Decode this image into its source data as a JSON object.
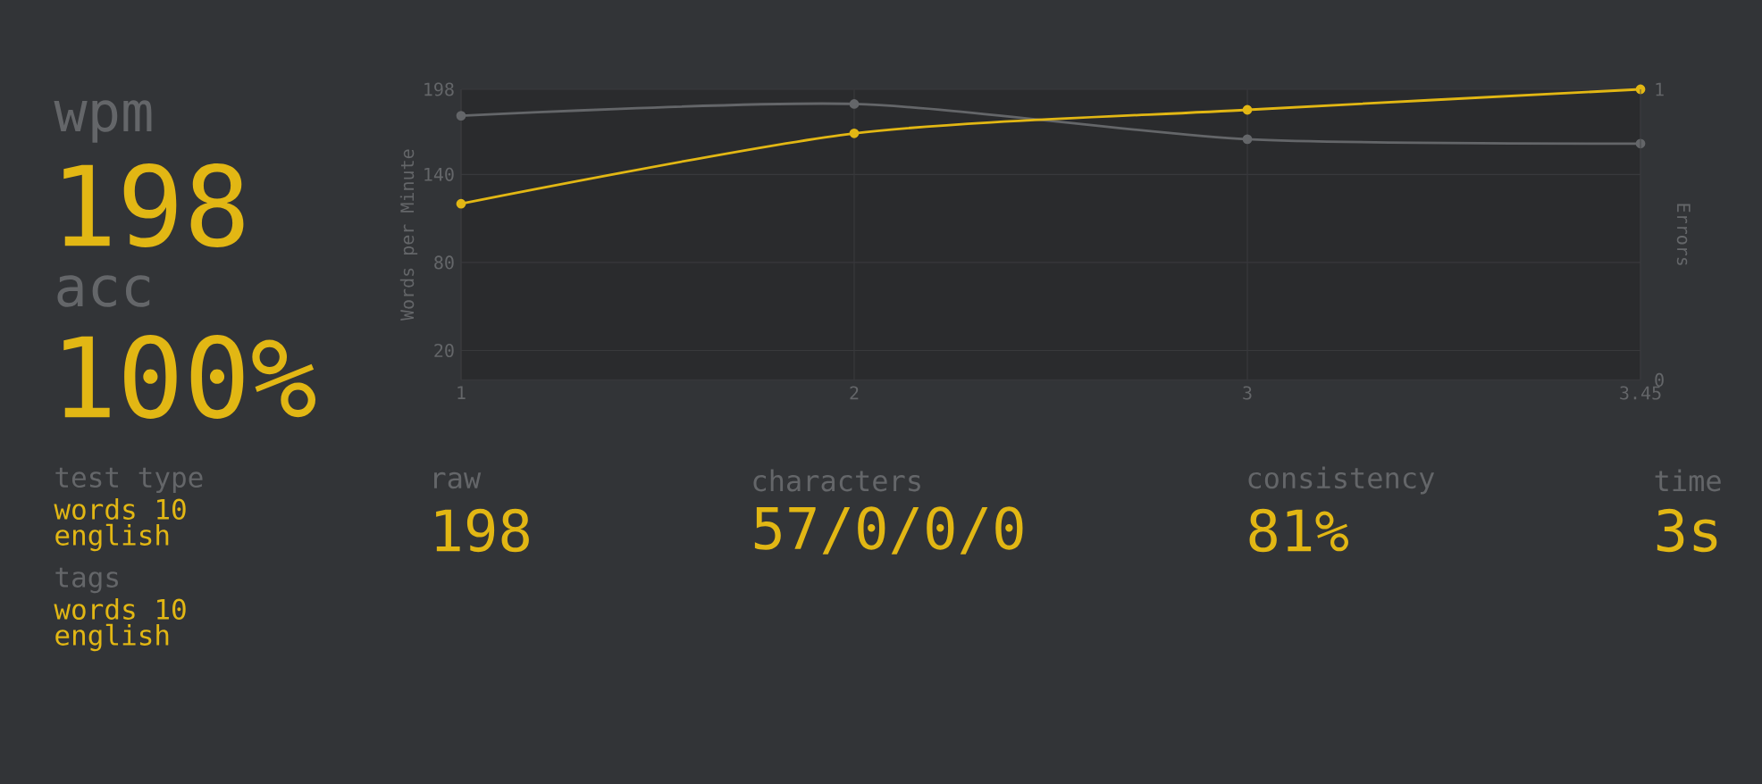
{
  "chart_data": [
    {
      "type": "line",
      "ylabel": "Words per Minute",
      "y2label": "Errors",
      "categories": [
        "1",
        "2",
        "3",
        "3.45"
      ],
      "series": [
        {
          "color": "#646669",
          "values": [
            180,
            188,
            164,
            161
          ]
        },
        {
          "color": "#e2b714",
          "values": [
            120,
            168,
            184,
            198
          ]
        }
      ],
      "ylim": [
        0,
        198
      ],
      "yticks": [
        20,
        80,
        140,
        198
      ],
      "y2lim": [
        0,
        1
      ],
      "y2ticks": [
        0,
        1
      ],
      "grid": true,
      "marker": "circle",
      "line_style": "solid"
    },
    {
      "type": "other",
      "annotations": [
        "wpm",
        "198",
        "acc",
        "100%",
        "test type",
        "words 10",
        "english",
        "tags",
        "words 10",
        "english",
        "raw",
        "198",
        "characters",
        "57/0/0/0",
        "consistency",
        "81%",
        "time",
        "3s"
      ]
    }
  ]
}
